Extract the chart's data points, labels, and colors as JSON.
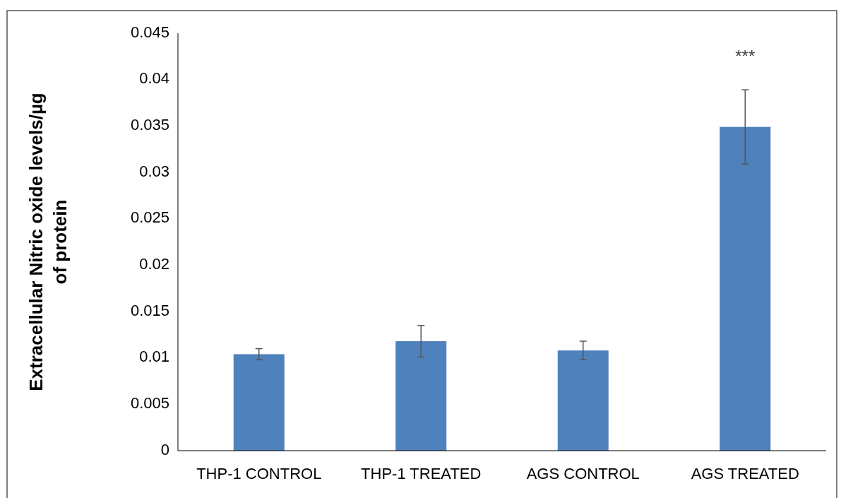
{
  "chart_data": {
    "type": "bar",
    "ylabel": "Extracellular Nitric oxide levels/µg of protein",
    "categories": [
      "THP-1 CONTROL",
      "THP-1 TREATED",
      "AGS CONTROL",
      "AGS TREATED"
    ],
    "values": [
      0.0104,
      0.0118,
      0.0108,
      0.0349
    ],
    "errors": [
      0.0006,
      0.0017,
      0.001,
      0.004
    ],
    "color": "#4f81bd",
    "ylim": [
      0,
      0.045
    ],
    "yticks": [
      0,
      0.005,
      0.01,
      0.015,
      0.02,
      0.025,
      0.03,
      0.035,
      0.04,
      0.045
    ],
    "annotations": [
      "***"
    ]
  }
}
